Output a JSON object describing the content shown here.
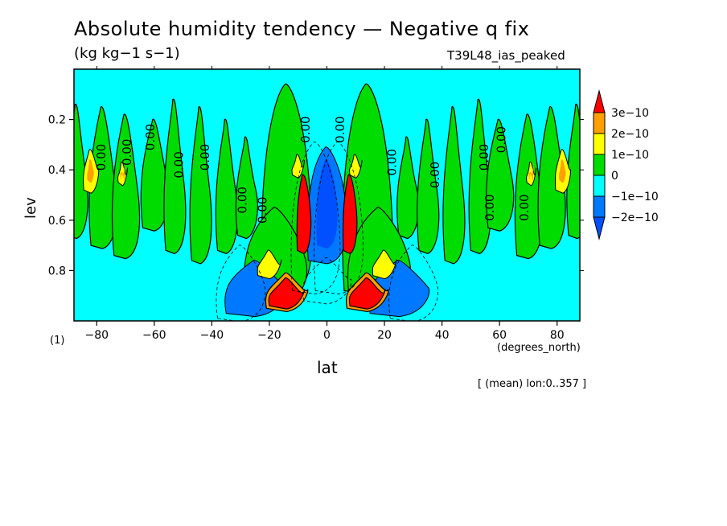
{
  "chart_data": {
    "type": "heatmap",
    "title": "Absolute humidity tendency — Negative q fix",
    "subtitle": "(kg kg−1 s−1)",
    "run_label": "T39L48_ias_peaked",
    "xlabel": "lat",
    "xunit": "(degrees_north)",
    "ylabel": "lev",
    "yunit": "(1)",
    "note": "[ (mean) lon:0..357 ]",
    "xlim": [
      -87.9,
      87.9
    ],
    "ylim": [
      0.0,
      1.0
    ],
    "y_inverted": true,
    "xticks": [
      -80,
      -60,
      -40,
      -20,
      0,
      20,
      40,
      60,
      80
    ],
    "xtick_labels": [
      "−80",
      "−60",
      "−40",
      "−20",
      "0",
      "20",
      "40",
      "60",
      "80"
    ],
    "yticks": [
      0.2,
      0.4,
      0.6,
      0.8
    ],
    "ytick_labels": [
      "0.2",
      "0.4",
      "0.6",
      "0.8"
    ],
    "contour_label": "0.00",
    "colorbar": {
      "levels": [
        {
          "label": "3e−10",
          "value": 3e-10,
          "color": "#ff0000"
        },
        {
          "label": "2e−10",
          "value": 2e-10,
          "color": "#ffa000"
        },
        {
          "label": "1e−10",
          "value": 1e-10,
          "color": "#ffff00"
        },
        {
          "label": "0",
          "value": 0,
          "color": "#00dc00"
        },
        {
          "label": "−1e−10",
          "value": -1e-10,
          "color": "#00ffff"
        },
        {
          "label": "−2e−10",
          "value": -2e-10,
          "color": "#0078ff"
        }
      ],
      "band_colors": [
        "#ff0000",
        "#ffa000",
        "#ffff00",
        "#00dc00",
        "#00ffff",
        "#0078ff",
        "#0050ff"
      ]
    },
    "features": [
      {
        "kind": "positive_column",
        "lat": -8,
        "lev_top": 0.42,
        "lev_bottom": 0.72,
        "level": 3e-10
      },
      {
        "kind": "positive_column",
        "lat": 8,
        "lev_top": 0.42,
        "lev_bottom": 0.72,
        "level": 3e-10
      },
      {
        "kind": "negative_core",
        "lat": 0,
        "lev_top": 0.32,
        "lev_bottom": 0.75,
        "level": -2e-10
      },
      {
        "kind": "positive_low",
        "lat": -14,
        "lev": 0.87,
        "level": 3e-10
      },
      {
        "kind": "positive_low",
        "lat": 14,
        "lev": 0.87,
        "level": 3e-10
      },
      {
        "kind": "negative_low",
        "lat": -28,
        "lev": 0.9,
        "level": -2e-10
      },
      {
        "kind": "negative_low",
        "lat": 28,
        "lev": 0.9,
        "level": -2e-10
      },
      {
        "kind": "positive_polar",
        "lat": -82,
        "lev": 0.4,
        "level": 2e-10
      },
      {
        "kind": "positive_polar",
        "lat": 82,
        "lev": 0.4,
        "level": 2e-10
      }
    ]
  }
}
